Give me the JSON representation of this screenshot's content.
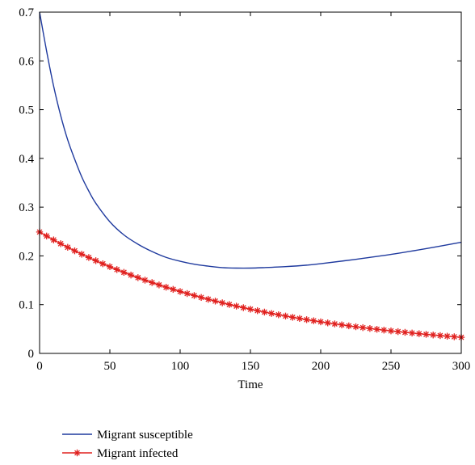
{
  "chart_data": {
    "type": "line",
    "title": "",
    "xlabel": "Time",
    "ylabel": "",
    "xlim": [
      0,
      300
    ],
    "ylim": [
      0,
      0.7
    ],
    "xticks": [
      0,
      50,
      100,
      150,
      200,
      250,
      300
    ],
    "yticks": [
      0,
      0.1,
      0.2,
      0.3,
      0.4,
      0.5,
      0.6,
      0.7
    ],
    "xtick_labels": [
      "0",
      "50",
      "100",
      "150",
      "200",
      "250",
      "300"
    ],
    "ytick_labels": [
      "0",
      "0.1",
      "0.2",
      "0.3",
      "0.4",
      "0.5",
      "0.6",
      "0.7"
    ],
    "grid": false,
    "legend_position": "bottom-left, below plot",
    "series": [
      {
        "name": "Migrant susceptible",
        "color": "#1f3a9e",
        "marker": "none",
        "x": [
          0,
          5,
          10,
          15,
          20,
          25,
          30,
          35,
          40,
          50,
          60,
          70,
          80,
          90,
          100,
          110,
          120,
          130,
          140,
          150,
          160,
          175,
          190,
          200,
          225,
          250,
          275,
          300
        ],
        "y": [
          0.7,
          0.62,
          0.548,
          0.488,
          0.438,
          0.398,
          0.362,
          0.333,
          0.308,
          0.27,
          0.243,
          0.224,
          0.209,
          0.197,
          0.189,
          0.183,
          0.179,
          0.176,
          0.175,
          0.175,
          0.176,
          0.178,
          0.181,
          0.184,
          0.193,
          0.203,
          0.215,
          0.228
        ]
      },
      {
        "name": "Migrant infected",
        "color": "#e0201e",
        "marker": "asterisk",
        "x_start": 0,
        "x_end": 300,
        "x_step": 5,
        "y_start": 0.249,
        "y_end": 0.033,
        "decay": "exponential"
      }
    ]
  }
}
